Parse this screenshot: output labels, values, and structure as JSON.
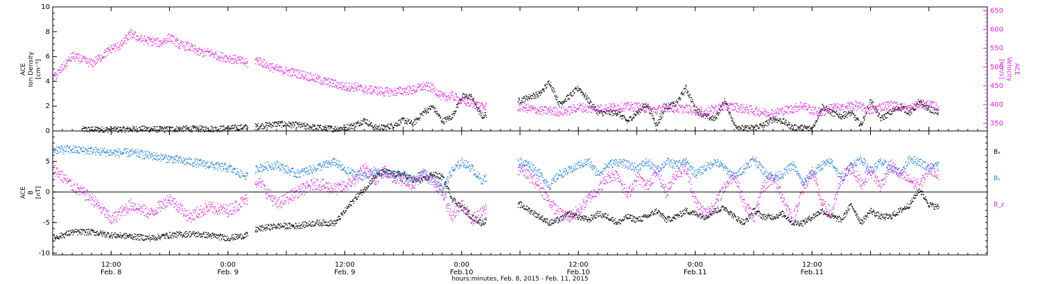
{
  "chart_data": [
    {
      "type": "scatter",
      "panel": "top",
      "left_axis_label": [
        "ACE",
        "Ion Density",
        "[cm⁻³]"
      ],
      "right_axis_label": [
        "ACE",
        "Velocity",
        "[km/s]"
      ],
      "left_ylim": [
        0,
        10
      ],
      "right_ylim": [
        330,
        660
      ],
      "left_ticks": [
        "0",
        "2",
        "4",
        "6",
        "8",
        "10"
      ],
      "right_ticks": [
        "350",
        "400",
        "450",
        "500",
        "550",
        "600",
        "650"
      ],
      "gaps_hours": [
        [
          40.0,
          41.5
        ],
        [
          89.0,
          95.5
        ]
      ],
      "series": [
        {
          "name": "Ion Density",
          "axis": "left",
          "color": "#000000",
          "x": [
            6,
            10,
            14,
            18,
            22,
            26,
            30,
            34,
            38,
            42,
            46,
            50,
            54,
            58,
            60,
            62,
            64,
            66,
            68,
            70,
            72,
            74,
            76,
            78,
            80,
            82,
            84,
            86,
            88,
            96,
            98,
            100,
            102,
            104,
            106,
            108,
            110,
            112,
            114,
            116,
            118,
            120,
            122,
            124,
            126,
            128,
            130,
            132,
            134,
            136,
            138,
            140,
            142,
            144,
            146,
            148,
            150,
            152,
            154,
            156,
            158,
            160,
            162,
            164,
            166,
            168,
            170,
            172,
            174,
            176,
            178,
            180,
            182
          ],
          "y": [
            0.15,
            0.15,
            0.15,
            0.2,
            0.15,
            0.2,
            0.2,
            0.2,
            0.3,
            0.4,
            0.6,
            0.5,
            0.3,
            0.2,
            0.3,
            0.5,
            0.9,
            0.3,
            0.3,
            0.5,
            0.9,
            0.6,
            1.5,
            2.0,
            0.8,
            1.2,
            2.8,
            2.8,
            1.2,
            2.5,
            2.8,
            3.0,
            4.0,
            2.2,
            2.8,
            3.5,
            2.5,
            1.5,
            1.5,
            1.5,
            0.8,
            1.5,
            2.2,
            0.5,
            2.0,
            2.2,
            3.5,
            1.8,
            1.2,
            1.0,
            2.5,
            0.5,
            0.2,
            0.3,
            0.5,
            1.0,
            0.8,
            0.3,
            0.3,
            0.2,
            2.0,
            1.5,
            1.2,
            1.5,
            0.5,
            2.5,
            1.0,
            1.5,
            2.0,
            1.5,
            2.3,
            1.8,
            1.5
          ]
        },
        {
          "name": "Velocity",
          "axis": "right",
          "color": "#e01ee0",
          "x": [
            0,
            2,
            4,
            6,
            8,
            10,
            12,
            14,
            16,
            18,
            20,
            22,
            24,
            26,
            28,
            30,
            32,
            34,
            36,
            38,
            40,
            42,
            44,
            46,
            48,
            50,
            52,
            54,
            56,
            58,
            60,
            62,
            64,
            66,
            68,
            70,
            72,
            74,
            76,
            78,
            80,
            82,
            84,
            86,
            88,
            96,
            98,
            100,
            102,
            104,
            106,
            108,
            110,
            112,
            114,
            116,
            118,
            120,
            122,
            124,
            126,
            128,
            130,
            132,
            134,
            136,
            138,
            140,
            142,
            144,
            146,
            148,
            150,
            152,
            154,
            156,
            158,
            160,
            162,
            164,
            166,
            168,
            170,
            172,
            174,
            176,
            178,
            180,
            182
          ],
          "y": [
            470,
            500,
            530,
            520,
            510,
            530,
            550,
            560,
            590,
            575,
            570,
            565,
            580,
            560,
            555,
            540,
            540,
            530,
            525,
            520,
            510,
            520,
            505,
            495,
            490,
            485,
            478,
            470,
            462,
            456,
            448,
            448,
            440,
            440,
            435,
            435,
            438,
            440,
            450,
            445,
            420,
            425,
            410,
            405,
            395,
            395,
            390,
            385,
            385,
            382,
            385,
            395,
            390,
            390,
            392,
            395,
            395,
            395,
            390,
            385,
            395,
            390,
            390,
            385,
            380,
            390,
            395,
            395,
            390,
            385,
            380,
            378,
            385,
            390,
            400,
            385,
            380,
            395,
            390,
            400,
            395,
            385,
            395,
            400,
            395,
            390,
            405,
            400,
            395
          ]
        }
      ]
    },
    {
      "type": "scatter",
      "panel": "bottom",
      "left_axis_label": [
        "ACE",
        "B",
        "[nT]"
      ],
      "ylim": [
        -10.3,
        10
      ],
      "y_ticks": [
        "-10",
        "-5",
        "0",
        "5"
      ],
      "zero_line": true,
      "gaps_hours": [
        [
          40.0,
          41.5
        ],
        [
          89.0,
          95.5
        ]
      ],
      "legend": [
        "Bₓ",
        "Bᵧ",
        "B_z"
      ],
      "legend_placement": "right",
      "series": [
        {
          "name": "Bₓ",
          "color": "#000000",
          "x": [
            0,
            4,
            8,
            12,
            16,
            20,
            24,
            28,
            32,
            36,
            40,
            42,
            46,
            50,
            54,
            58,
            60,
            62,
            64,
            66,
            68,
            70,
            72,
            74,
            76,
            78,
            80,
            82,
            84,
            86,
            88,
            96,
            98,
            100,
            102,
            104,
            106,
            108,
            110,
            112,
            114,
            116,
            118,
            120,
            122,
            124,
            126,
            128,
            130,
            132,
            134,
            136,
            138,
            140,
            142,
            144,
            146,
            148,
            150,
            152,
            154,
            156,
            158,
            160,
            162,
            164,
            166,
            168,
            170,
            172,
            174,
            176,
            178,
            180,
            182
          ],
          "y": [
            -7.5,
            -6.5,
            -6.5,
            -7.0,
            -7.2,
            -7.5,
            -7.0,
            -6.8,
            -7.0,
            -7.5,
            -7.0,
            -6.0,
            -5.5,
            -5.5,
            -5.0,
            -5.0,
            -3.0,
            -1.0,
            0.5,
            2.5,
            3.5,
            3.0,
            3.0,
            2.0,
            2.0,
            3.0,
            2.5,
            -1.0,
            -2.5,
            -4.0,
            -5.0,
            -2.0,
            -3.0,
            -4.0,
            -5.0,
            -4.5,
            -3.5,
            -4.0,
            -4.5,
            -3.5,
            -4.0,
            -5.0,
            -4.0,
            -4.5,
            -4.0,
            -3.0,
            -4.5,
            -4.0,
            -3.0,
            -3.5,
            -4.0,
            -3.0,
            -2.5,
            -4.0,
            -5.0,
            -3.0,
            -4.0,
            -4.0,
            -3.5,
            -5.0,
            -5.0,
            -4.0,
            -3.0,
            -4.0,
            -4.5,
            -2.0,
            -5.0,
            -3.0,
            -4.0,
            -4.0,
            -3.0,
            -2.0,
            0.5,
            -2.0,
            -2.5
          ]
        },
        {
          "name": "Bᵧ",
          "color": "#1e7ee0",
          "x": [
            0,
            4,
            8,
            12,
            16,
            20,
            24,
            28,
            32,
            36,
            40,
            42,
            46,
            50,
            54,
            58,
            60,
            62,
            64,
            66,
            68,
            70,
            72,
            74,
            76,
            78,
            80,
            82,
            84,
            86,
            88,
            96,
            98,
            100,
            102,
            104,
            106,
            108,
            110,
            112,
            114,
            116,
            118,
            120,
            122,
            124,
            126,
            128,
            130,
            132,
            134,
            136,
            138,
            140,
            142,
            144,
            146,
            148,
            150,
            152,
            154,
            156,
            158,
            160,
            162,
            164,
            166,
            168,
            170,
            172,
            174,
            176,
            178,
            180,
            182
          ],
          "y": [
            7.0,
            7.0,
            6.8,
            6.5,
            6.5,
            6.0,
            5.5,
            5.0,
            4.5,
            4.0,
            2.5,
            4.0,
            4.5,
            3.0,
            4.0,
            5.0,
            3.5,
            3.0,
            2.5,
            3.5,
            3.0,
            3.0,
            2.5,
            2.0,
            3.0,
            2.5,
            0.5,
            3.5,
            5.0,
            4.0,
            2.0,
            5.0,
            4.5,
            3.0,
            1.0,
            3.0,
            3.5,
            4.5,
            5.0,
            3.0,
            4.5,
            5.0,
            4.5,
            4.0,
            5.0,
            3.5,
            5.0,
            4.5,
            5.0,
            3.0,
            4.0,
            5.0,
            4.0,
            2.5,
            4.0,
            5.5,
            3.5,
            2.5,
            3.0,
            4.5,
            1.5,
            3.0,
            4.5,
            5.0,
            2.0,
            4.5,
            5.5,
            3.5,
            5.0,
            4.0,
            3.0,
            5.5,
            5.0,
            4.0,
            4.5
          ]
        },
        {
          "name": "B_z",
          "color": "#e01ee0",
          "x": [
            0,
            4,
            8,
            12,
            16,
            20,
            24,
            28,
            32,
            36,
            40,
            42,
            46,
            50,
            54,
            58,
            60,
            62,
            64,
            66,
            68,
            70,
            72,
            74,
            76,
            78,
            80,
            82,
            84,
            86,
            88,
            96,
            98,
            100,
            102,
            104,
            106,
            108,
            110,
            112,
            114,
            116,
            118,
            120,
            122,
            124,
            126,
            128,
            130,
            132,
            134,
            136,
            138,
            140,
            142,
            144,
            146,
            148,
            150,
            152,
            154,
            156,
            158,
            160,
            162,
            164,
            166,
            168,
            170,
            172,
            174,
            176,
            178,
            180,
            182
          ],
          "y": [
            4.0,
            1.0,
            -1.0,
            -4.5,
            -2.0,
            -3.5,
            -1.0,
            -4.0,
            -2.5,
            -3.0,
            -1.0,
            2.0,
            -2.0,
            0.0,
            1.5,
            0.5,
            1.0,
            2.0,
            4.0,
            2.0,
            3.5,
            2.5,
            2.0,
            1.5,
            3.0,
            2.0,
            0.0,
            -4.0,
            -2.0,
            -4.5,
            -3.5,
            4.0,
            2.5,
            1.0,
            -1.5,
            -3.5,
            -4.0,
            -3.0,
            -1.0,
            0.5,
            2.5,
            3.0,
            -0.5,
            2.5,
            1.0,
            3.5,
            0.0,
            3.0,
            4.0,
            -1.5,
            -3.5,
            -2.0,
            1.0,
            3.0,
            -2.0,
            -4.0,
            1.0,
            2.5,
            -1.0,
            -4.5,
            0.5,
            3.5,
            -2.0,
            -3.5,
            2.5,
            4.0,
            1.5,
            3.5,
            1.0,
            4.5,
            3.0,
            2.0,
            1.0,
            4.0,
            3.0
          ]
        }
      ]
    }
  ],
  "time_axis": {
    "range_hours": [
      0,
      192
    ],
    "tick_hours": [
      12,
      24,
      36,
      48,
      60,
      72,
      84,
      96,
      108,
      120,
      132,
      144,
      156,
      168,
      180,
      192
    ],
    "labeled_ticks": [
      {
        "hour": 12,
        "time": "12:00",
        "date": "Feb. 8"
      },
      {
        "hour": 36,
        "time": "0:00",
        "date": "Feb. 9"
      },
      {
        "hour": 60,
        "time": "12:00",
        "date": "Feb. 9"
      },
      {
        "hour": 84,
        "time": "0:00",
        "date": "Feb.10"
      },
      {
        "hour": 108,
        "time": "12:00",
        "date": "Feb.10"
      },
      {
        "hour": 132,
        "time": "0:00",
        "date": "Feb.11"
      },
      {
        "hour": 156,
        "time": "12:00",
        "date": "Feb.11"
      }
    ],
    "title": "hours:minutes, Feb.  8, 2015 - Feb. 11, 2015"
  }
}
